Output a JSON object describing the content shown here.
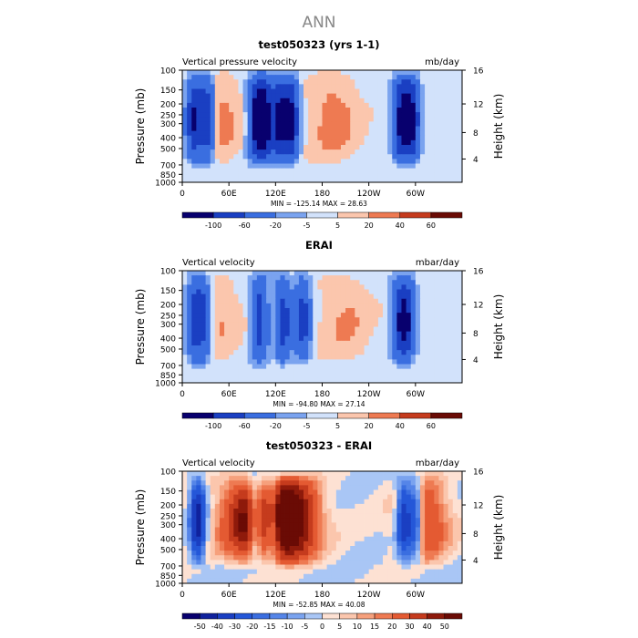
{
  "page_title": "ANN",
  "chart_data": [
    {
      "type": "heatmap",
      "title": "test050323 (yrs 1-1)",
      "left_label": "Vertical pressure velocity",
      "units": "mb/day",
      "ylabel": "Pressure (mb)",
      "y2label": "Height (km)",
      "x_ticks": [
        "0",
        "60E",
        "120E",
        "180",
        "120W",
        "60W"
      ],
      "y_ticks": [
        "100",
        "150",
        "200",
        "250",
        "300",
        "400",
        "500",
        "700",
        "850",
        "1000"
      ],
      "y2_ticks": [
        "16",
        "12",
        "8",
        "4"
      ],
      "stats": "MIN = -125.14   MAX =  28.63",
      "colorbar_levels": [
        "-100",
        "-60",
        "-20",
        "-5",
        "5",
        "20",
        "40",
        "60"
      ],
      "field": {
        "amplitude_up": 110,
        "amplitude_down": 30,
        "upward_centers_lon": [
          15,
          32,
          95,
          107,
          125,
          140,
          282,
          295
        ],
        "downward_centers_lon": [
          195,
          45
        ]
      }
    },
    {
      "type": "heatmap",
      "title": "ERAI",
      "left_label": "Vertical velocity",
      "units": "mbar/day",
      "ylabel": "Pressure (mb)",
      "y2label": "Height (km)",
      "x_ticks": [
        "0",
        "60E",
        "120E",
        "180",
        "120W",
        "60W"
      ],
      "y_ticks": [
        "100",
        "150",
        "200",
        "250",
        "300",
        "400",
        "500",
        "700",
        "850",
        "1000"
      ],
      "y2_ticks": [
        "16",
        "12",
        "8",
        "4"
      ],
      "stats": "MIN = -94.80   MAX =  27.14",
      "colorbar_levels": [
        "-100",
        "-60",
        "-20",
        "-5",
        "5",
        "20",
        "40",
        "60"
      ],
      "field": {
        "amplitude_up": 80,
        "amplitude_down": 22,
        "upward_centers_lon": [
          15,
          28,
          100,
          130,
          155,
          280,
          290
        ],
        "downward_centers_lon": [
          210,
          42
        ]
      }
    },
    {
      "type": "heatmap",
      "title": "test050323 - ERAI",
      "left_label": "Vertical velocity",
      "units": "mbar/day",
      "ylabel": "Pressure (mb)",
      "y2label": "Height (km)",
      "x_ticks": [
        "0",
        "60E",
        "120E",
        "180",
        "120W",
        "60W"
      ],
      "y_ticks": [
        "100",
        "150",
        "200",
        "250",
        "300",
        "400",
        "500",
        "700",
        "850",
        "1000"
      ],
      "y2_ticks": [
        "16",
        "12",
        "8",
        "4"
      ],
      "stats": "MIN = -52.85   MAX =  40.08",
      "colorbar_levels": [
        "-50",
        "-40",
        "-30",
        "-20",
        "-15",
        "-10",
        "-5",
        "0",
        "5",
        "10",
        "15",
        "20",
        "30",
        "40",
        "50"
      ],
      "field": {
        "amplitude_up": 48,
        "amplitude_down": 35,
        "upward_centers_lon": [
          20,
          95,
          115,
          285,
          300
        ],
        "downward_centers_lon": [
          75,
          105,
          130,
          150,
          310
        ]
      }
    }
  ],
  "colors": {
    "ramp_blue_to_red": [
      "#08006e",
      "#10229d",
      "#1a3fc2",
      "#2457d8",
      "#3a6ee0",
      "#5585e8",
      "#7aa3ef",
      "#a9c6f5",
      "#d2e2fb",
      "#fde1d3",
      "#fbc6ad",
      "#f6a07c",
      "#ee7a52",
      "#e45a32",
      "#c53b1d",
      "#8e1a0b",
      "#6a0b05"
    ]
  }
}
